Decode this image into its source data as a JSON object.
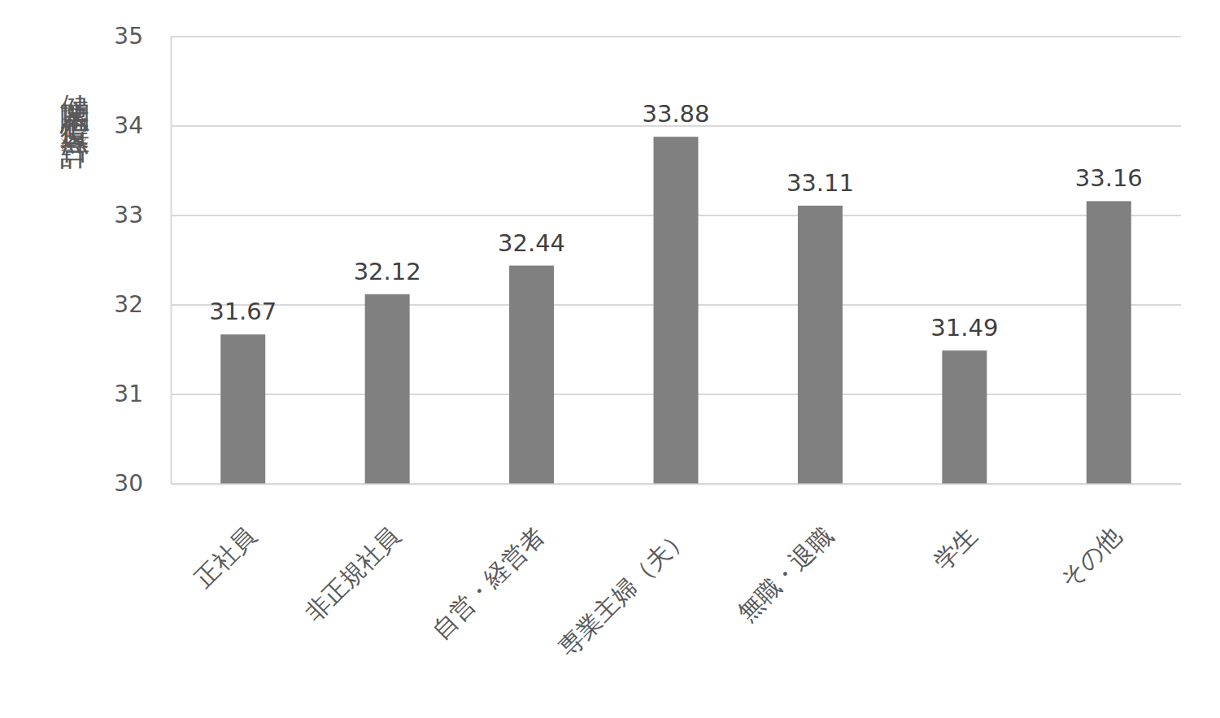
{
  "chart_data": {
    "type": "bar",
    "y_label": "健康関心度得点（合計）",
    "categories": [
      "正社員",
      "非正規社員",
      "自営・経営者",
      "専業主婦（夫）",
      "無職・退職",
      "学生",
      "その他"
    ],
    "values": [
      31.67,
      32.12,
      32.44,
      33.88,
      33.11,
      31.49,
      33.16
    ],
    "color": "#808080",
    "ylim": [
      30,
      35
    ],
    "yticks": [
      30,
      31,
      32,
      33,
      34,
      35
    ],
    "grid": true,
    "data_labels": true
  }
}
